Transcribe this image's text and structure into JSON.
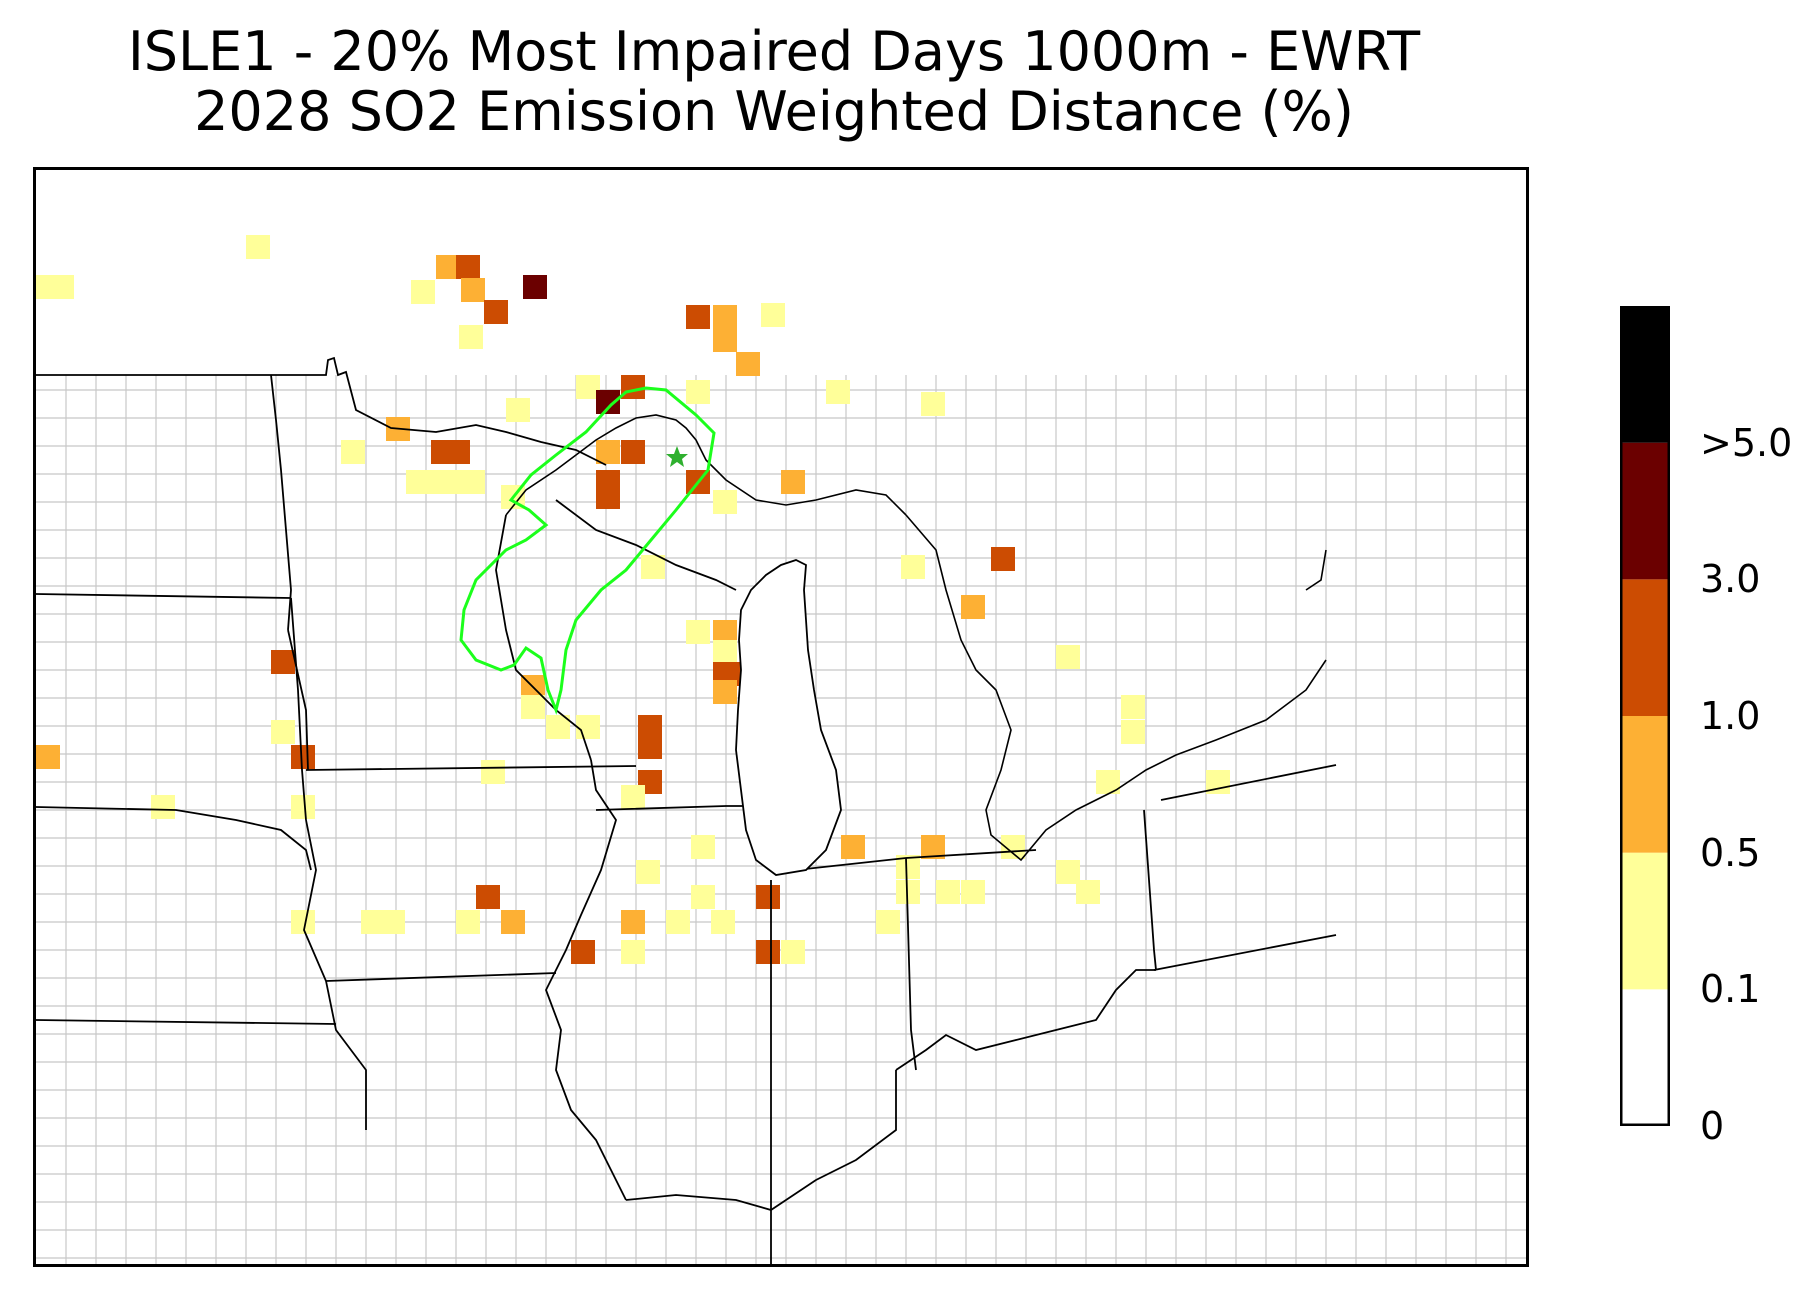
{
  "title": {
    "line1": "ISLE1 - 20% Most Impaired Days 1000m - EWRT",
    "line2": "2028 SO2 Emission Weighted Distance (%)"
  },
  "colorbar": {
    "levels": [
      {
        "label": "0",
        "color": "#ffffff"
      },
      {
        "label": "0.1",
        "color": "#ffff99"
      },
      {
        "label": "0.5",
        "color": "#fdb034"
      },
      {
        "label": "1.0",
        "color": "#cc4c02"
      },
      {
        "label": "3.0",
        "color": "#6b0000"
      },
      {
        "label": ">5.0",
        "color": "#000000"
      }
    ],
    "ticks": [
      "0",
      "0.1",
      "0.5",
      "1.0",
      "3.0",
      ">5.0"
    ]
  },
  "map": {
    "contour_color": "#00ff00",
    "site_marker": "green-star-icon",
    "region": "Upper Midwest / Great Lakes"
  }
}
